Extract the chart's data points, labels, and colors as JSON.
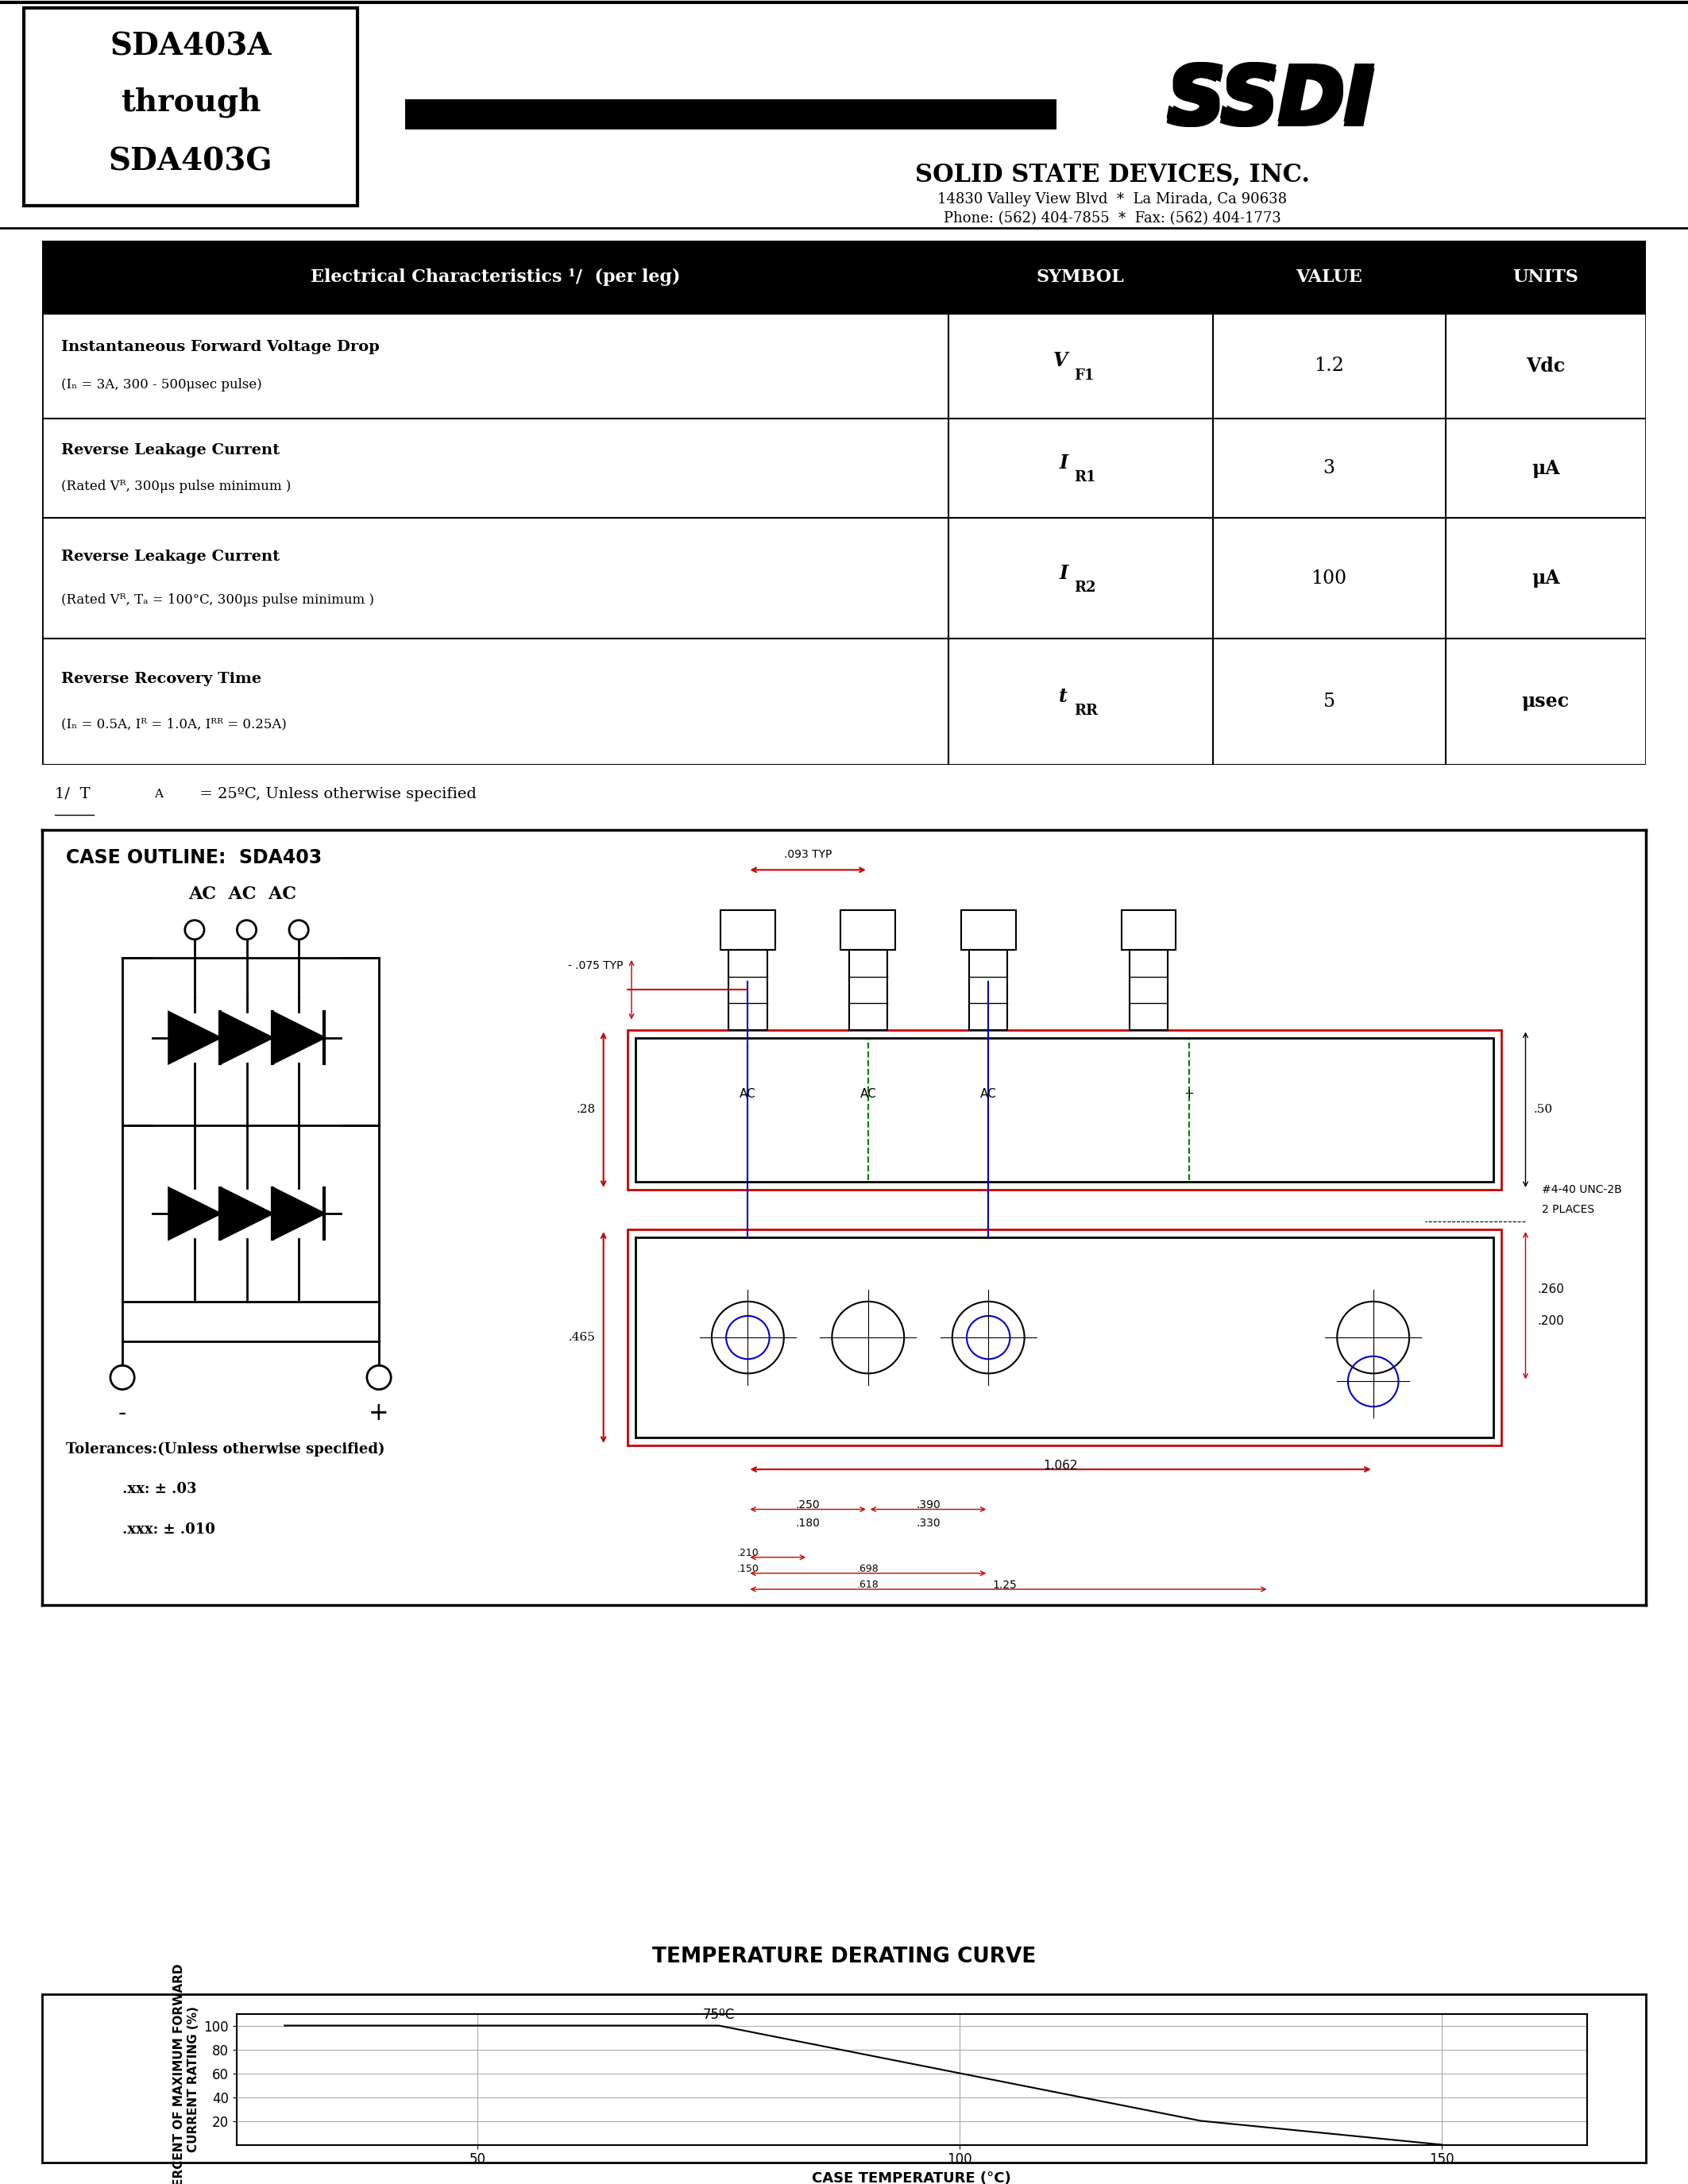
{
  "page_bg": "#ffffff",
  "header": {
    "left_box_lines": [
      "SDA403A",
      "through",
      "SDA403G"
    ],
    "company_name": "SOLID STATE DEVICES, INC.",
    "address": "14830 Valley View Blvd  *  La Mirada, Ca 90638",
    "phone": "Phone: (562) 404-7855  *  Fax: (562) 404-1773"
  },
  "table": {
    "rows": [
      {
        "param_bold": "Instantaneous Forward Voltage Drop",
        "param_sub": "(Iₙ = 3A, 300 - 500μsec pulse)",
        "sym_main": "V",
        "sym_sub": "F1",
        "value": "1.2",
        "units": "Vdc"
      },
      {
        "param_bold": "Reverse Leakage Current",
        "param_sub": "(Rated Vᴿ, 300μs pulse minimum )",
        "sym_main": "I",
        "sym_sub": "R1",
        "value": "3",
        "units": "μA"
      },
      {
        "param_bold": "Reverse Leakage Current",
        "param_sub": "(Rated Vᴿ, Tₐ = 100°C, 300μs pulse minimum )",
        "sym_main": "I",
        "sym_sub": "R2",
        "value": "100",
        "units": "μA"
      },
      {
        "param_bold": "Reverse Recovery Time",
        "param_sub": "(Iₙ = 0.5A, Iᴿ = 1.0A, Iᴿᴿ = 0.25A)",
        "sym_main": "t",
        "sym_sub": "RR",
        "value": "5",
        "units": "μsec"
      }
    ],
    "footnote": "1/  Tₐ = 25ºC, Unless otherwise specified"
  },
  "derating": {
    "title": "TEMPERATURE DERATING CURVE",
    "xlabel": "CASE TEMPERATURE (°C)",
    "ylabel": "PERCENT OF MAXIMUM FORWARD\nCURRENT RATING (%)",
    "x_data": [
      30,
      75,
      125,
      150
    ],
    "y_data": [
      100,
      100,
      20,
      0
    ],
    "annotation": "75ºC",
    "xlim": [
      25,
      165
    ],
    "ylim": [
      0,
      110
    ],
    "xticks": [
      50,
      100,
      150
    ],
    "yticks": [
      20,
      40,
      60,
      80,
      100
    ],
    "grid_color": "#aaaaaa"
  }
}
